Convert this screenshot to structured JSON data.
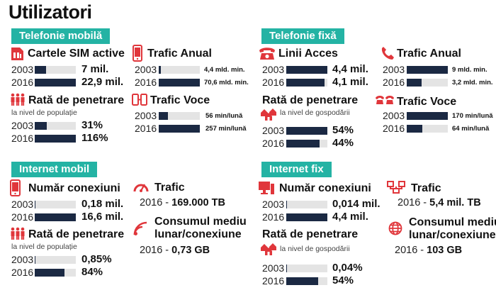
{
  "title": "Utilizatori",
  "colors": {
    "accent": "#24b3a4",
    "icon_red": "#e0363b",
    "bar": "#1b2943",
    "track": "#e4e4e4"
  },
  "mobile": {
    "tag": "Telefonie mobilă",
    "sim": {
      "label": "Cartele SIM active",
      "icon": "sim-card-icon",
      "rows": [
        {
          "year": "2003",
          "value": "7 mil.",
          "fill": 0.28
        },
        {
          "year": "2016",
          "value": "22,9 mil.",
          "fill": 1.0
        }
      ]
    },
    "penetration": {
      "label": "Rată de penetrare",
      "sublabel": "la nivel de populație",
      "icon": "people-icon",
      "rows": [
        {
          "year": "2003",
          "value": "31%",
          "fill": 0.3
        },
        {
          "year": "2016",
          "value": "116%",
          "fill": 1.0
        }
      ]
    },
    "annual": {
      "label": "Trafic Anual",
      "icon": "mobile-phone-icon",
      "rows": [
        {
          "year": "2003",
          "value": "4,4 mld. min.",
          "fill": 0.06
        },
        {
          "year": "2016",
          "value": "70,6 mld. min.",
          "fill": 1.0
        }
      ]
    },
    "voice": {
      "label": "Trafic Voce",
      "icon": "two-phones-icon",
      "rows": [
        {
          "year": "2003",
          "value": "56 min/lună",
          "fill": 0.22
        },
        {
          "year": "2016",
          "value": "257 min/lună",
          "fill": 1.0
        }
      ]
    }
  },
  "fixed": {
    "tag": "Telefonie fixă",
    "lines": {
      "label": "Linii Acces",
      "icon": "landline-phone-icon",
      "rows": [
        {
          "year": "2003",
          "value": "4,4 mil.",
          "fill": 1.0
        },
        {
          "year": "2016",
          "value": "4,1 mil.",
          "fill": 0.93
        }
      ]
    },
    "penetration": {
      "label": "Rată de penetrare",
      "sublabel": "la nivel de gospodării",
      "icon": "houses-icon",
      "rows": [
        {
          "year": "2003",
          "value": "54%",
          "fill": 1.0
        },
        {
          "year": "2016",
          "value": "44%",
          "fill": 0.81
        }
      ]
    },
    "annual": {
      "label": "Trafic Anual",
      "icon": "handset-icon",
      "rows": [
        {
          "year": "2003",
          "value": "9 mld. min.",
          "fill": 1.0
        },
        {
          "year": "2016",
          "value": "3,2 mld. min.",
          "fill": 0.36
        }
      ]
    },
    "voice": {
      "label": "Trafic Voce",
      "icon": "two-landlines-icon",
      "rows": [
        {
          "year": "2003",
          "value": "170 min/lună",
          "fill": 1.0
        },
        {
          "year": "2016",
          "value": "64 min/lună",
          "fill": 0.38
        }
      ]
    }
  },
  "mobile_internet": {
    "tag": "Internet mobil",
    "connections": {
      "label": "Număr conexiuni",
      "icon": "smartphone-icon",
      "rows": [
        {
          "year": "2003",
          "value": "0,18 mil.",
          "fill": 0.01
        },
        {
          "year": "2016",
          "value": "16,6 mil.",
          "fill": 1.0
        }
      ]
    },
    "penetration": {
      "label": "Rată de penetrare",
      "sublabel": "la nivel de populație",
      "icon": "people-icon",
      "rows": [
        {
          "year": "2003",
          "value": "0,85%",
          "fill": 0.01
        },
        {
          "year": "2016",
          "value": "84%",
          "fill": 0.72
        }
      ]
    },
    "traffic": {
      "label": "Trafic",
      "icon": "speedometer-icon",
      "value_prefix": "2016 - ",
      "value": "169.000 TB"
    },
    "consumption": {
      "label_line1": "Consumul mediu",
      "label_line2": "lunar/conexiune",
      "icon": "wifi-icon",
      "value_prefix": "2016 - ",
      "value": "0,73 GB"
    }
  },
  "fixed_internet": {
    "tag": "Internet fix",
    "connections": {
      "label": "Număr conexiuni",
      "icon": "desktop-computer-icon",
      "rows": [
        {
          "year": "2003",
          "value": "0,014 mil.",
          "fill": 0.01
        },
        {
          "year": "2016",
          "value": "4,4 mil.",
          "fill": 1.0
        }
      ]
    },
    "penetration": {
      "label": "Rată de penetrare",
      "sublabel": "la nivel de gospodării",
      "icon": "houses-icon",
      "rows": [
        {
          "year": "2003",
          "value": "0,04%",
          "fill": 0.01
        },
        {
          "year": "2016",
          "value": "54%",
          "fill": 0.78
        }
      ]
    },
    "traffic": {
      "label": "Trafic",
      "icon": "network-icon",
      "value_prefix": "2016 - ",
      "value": "5,4 mil. TB"
    },
    "consumption": {
      "label_line1": "Consumul mediu",
      "label_line2": "lunar/conexiune",
      "icon": "globe-icon",
      "value_prefix": "2016 - ",
      "value": "103 GB"
    }
  }
}
